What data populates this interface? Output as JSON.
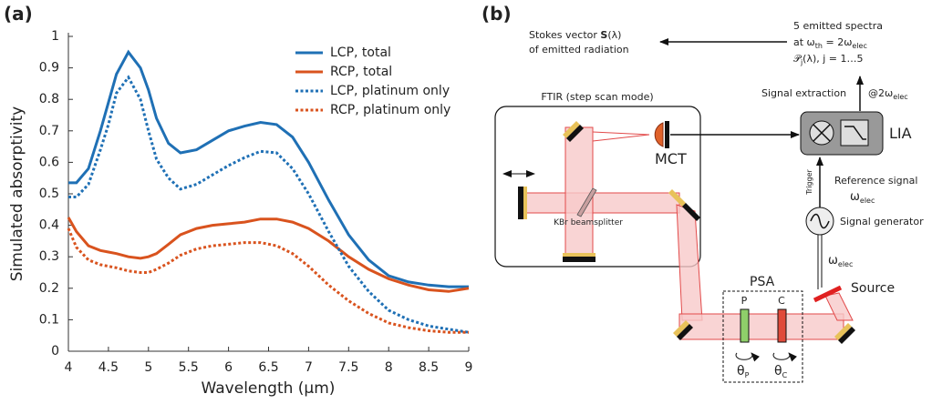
{
  "chart_data": {
    "type": "line",
    "panel_label": "(a)",
    "x_label": "Wavelength (μm)",
    "y_label": "Simulated absorptivity",
    "x": [
      4,
      4.1,
      4.25,
      4.4,
      4.5,
      4.6,
      4.75,
      4.9,
      5,
      5.1,
      5.25,
      5.4,
      5.6,
      5.8,
      6,
      6.2,
      6.4,
      6.6,
      6.8,
      7,
      7.25,
      7.5,
      7.75,
      8,
      8.25,
      8.5,
      8.75,
      9
    ],
    "series": [
      {
        "name": "LCP, total",
        "color": "#1f70b5",
        "dash": "solid",
        "values": [
          0.535,
          0.535,
          0.58,
          0.7,
          0.79,
          0.88,
          0.95,
          0.9,
          0.83,
          0.74,
          0.66,
          0.63,
          0.64,
          0.67,
          0.7,
          0.715,
          0.727,
          0.72,
          0.68,
          0.6,
          0.48,
          0.37,
          0.29,
          0.24,
          0.22,
          0.21,
          0.205,
          0.205
        ]
      },
      {
        "name": "RCP, total",
        "color": "#d9531e",
        "dash": "solid",
        "values": [
          0.425,
          0.38,
          0.335,
          0.32,
          0.315,
          0.31,
          0.3,
          0.295,
          0.3,
          0.31,
          0.34,
          0.37,
          0.39,
          0.4,
          0.405,
          0.41,
          0.42,
          0.42,
          0.41,
          0.39,
          0.35,
          0.3,
          0.26,
          0.23,
          0.21,
          0.195,
          0.19,
          0.2
        ]
      },
      {
        "name": "LCP, platinum only",
        "color": "#1f70b5",
        "dash": "dotted",
        "values": [
          0.49,
          0.49,
          0.53,
          0.64,
          0.72,
          0.82,
          0.87,
          0.8,
          0.7,
          0.61,
          0.55,
          0.515,
          0.53,
          0.56,
          0.59,
          0.615,
          0.635,
          0.63,
          0.58,
          0.5,
          0.38,
          0.27,
          0.19,
          0.13,
          0.1,
          0.08,
          0.07,
          0.06
        ]
      },
      {
        "name": "RCP, platinum only",
        "color": "#d9531e",
        "dash": "dotted",
        "values": [
          0.39,
          0.33,
          0.29,
          0.275,
          0.27,
          0.265,
          0.255,
          0.25,
          0.25,
          0.26,
          0.28,
          0.305,
          0.325,
          0.335,
          0.34,
          0.345,
          0.345,
          0.335,
          0.31,
          0.27,
          0.21,
          0.16,
          0.12,
          0.09,
          0.075,
          0.065,
          0.06,
          0.06
        ]
      }
    ],
    "xlim": [
      4,
      9
    ],
    "xticks": [
      4,
      4.5,
      5,
      5.5,
      6,
      6.5,
      7,
      7.5,
      8,
      8.5,
      9
    ],
    "ylim": [
      0,
      1
    ],
    "yticks": [
      0,
      0.1,
      0.2,
      0.3,
      0.4,
      0.5,
      0.6,
      0.7,
      0.8,
      0.9,
      1
    ],
    "legend": "upper right",
    "grid": false
  },
  "diagram": {
    "panel_label": "(b)",
    "stokes": {
      "line1": [
        "Stokes vector ",
        "S",
        "(λ)"
      ],
      "line2": "of emitted radiation"
    },
    "spectra": {
      "line1": "5 emitted spectra",
      "line2": [
        "at ω",
        "th",
        " = 2ω",
        "elec"
      ],
      "line3": [
        "𝒫",
        "j",
        "(λ), j = 1…5"
      ]
    },
    "extraction": {
      "label": "Signal extraction",
      "freq": [
        "@2ω",
        "elec"
      ]
    },
    "lia": "LIA",
    "ftir": "FTIR (step scan mode)",
    "mct": "MCT",
    "beamsplitter": "KBr beamsplitter",
    "trigger": "Trigger",
    "reference": {
      "line1": "Reference signal",
      "line2": [
        "ω",
        "elec"
      ]
    },
    "generator": "Signal generator",
    "source_freq": [
      "ω",
      "elec"
    ],
    "source": "Source",
    "psa": "PSA",
    "polarizer": "P",
    "compensator": "C",
    "theta_p": [
      "θ",
      "P"
    ],
    "theta_c": [
      "θ",
      "C"
    ]
  }
}
